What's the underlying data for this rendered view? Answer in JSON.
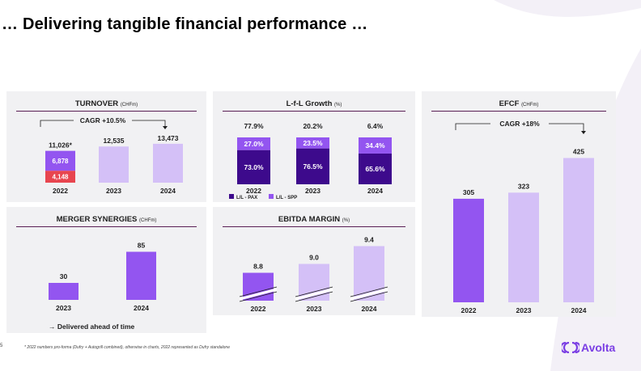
{
  "page": {
    "title": "… Delivering tangible financial performance …",
    "footnote": "* 2022 numbers pro-forma (Dufry + Autogrill combined), otherwise in charts, 2022 represented as Dufry standalone",
    "page_number": "5",
    "logo_text": "Avolta"
  },
  "colors": {
    "dark": "#3d0a8c",
    "mid": "#9355f0",
    "light": "#d4c0f7",
    "red": "#e8454f",
    "rule": "#5a1f55"
  },
  "chart_data": [
    {
      "id": "turnover",
      "type": "bar",
      "title": "TURNOVER",
      "unit": "(CHFm)",
      "cagr": "CAGR +10.5%",
      "categories": [
        "2022",
        "2023",
        "2024"
      ],
      "totals": [
        "11,026*",
        "12,535",
        "13,473"
      ],
      "series": [
        {
          "name": "Autogrill",
          "values": [
            4148,
            0,
            0
          ],
          "labels": [
            "4,148",
            "",
            ""
          ]
        },
        {
          "name": "Dufry",
          "values": [
            6878,
            12535,
            13473
          ],
          "labels": [
            "6,878",
            "",
            ""
          ]
        }
      ],
      "ylim": [
        0,
        14000
      ]
    },
    {
      "id": "lfl",
      "type": "bar",
      "title": "L-f-L Growth",
      "unit": "(%)",
      "categories": [
        "2022",
        "2023",
        "2024"
      ],
      "totals": [
        "77.9%",
        "20.2%",
        "6.4%"
      ],
      "series": [
        {
          "name": "L/L - PAX",
          "values": [
            73.0,
            76.5,
            65.6
          ],
          "labels": [
            "73.0%",
            "76.5%",
            "65.6%"
          ]
        },
        {
          "name": "L/L - SPP",
          "values": [
            27.0,
            23.5,
            34.4
          ],
          "labels": [
            "27.0%",
            "23.5%",
            "34.4%"
          ]
        }
      ],
      "legend": [
        "L/L - PAX",
        "L/L - SPP"
      ],
      "ylim": [
        0,
        100
      ]
    },
    {
      "id": "synergies",
      "type": "bar",
      "title": "MERGER SYNERGIES",
      "unit": "(CHFm)",
      "categories": [
        "2023",
        "2024"
      ],
      "values": [
        30,
        85
      ],
      "labels": [
        "30",
        "85"
      ],
      "annotation": "→ Delivered ahead of time",
      "ylim": [
        0,
        90
      ]
    },
    {
      "id": "ebitda",
      "type": "bar",
      "title": "EBITDA MARGIN",
      "unit": "(%)",
      "categories": [
        "2022",
        "2023",
        "2024"
      ],
      "values": [
        8.8,
        9.0,
        9.4
      ],
      "labels": [
        "8.8",
        "9.0",
        "9.4"
      ],
      "axis_break": true,
      "ylim": [
        8.5,
        9.5
      ]
    },
    {
      "id": "efcf",
      "type": "bar",
      "title": "EFCF",
      "unit": "(CHFm)",
      "cagr": "CAGR +18%",
      "categories": [
        "2022",
        "2023",
        "2024"
      ],
      "values": [
        305,
        323,
        425
      ],
      "labels": [
        "305",
        "323",
        "425"
      ],
      "ylim": [
        0,
        450
      ]
    }
  ]
}
